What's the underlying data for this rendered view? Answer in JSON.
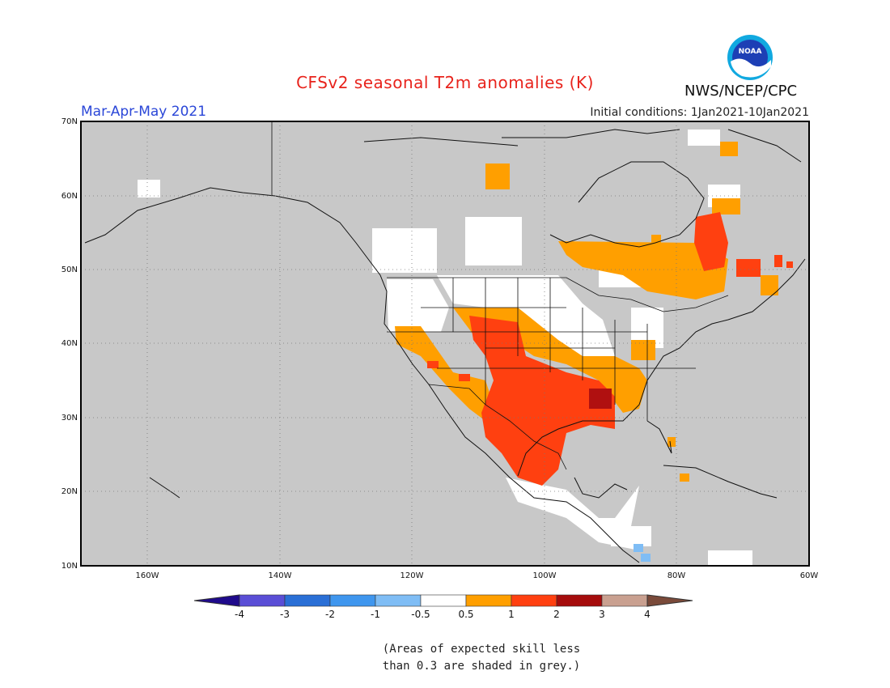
{
  "title": "CFSv2 seasonal T2m anomalies (K)",
  "season": "Mar-Apr-May 2021",
  "initial_conditions": "Initial conditions: 1Jan2021-10Jan2021",
  "agency": "NWS/NCEP/CPC",
  "logo_text": "NOAA",
  "note_line1": "(Areas of expected skill less",
  "note_line2": "than 0.3 are shaded in grey.)",
  "map": {
    "lon_range": [
      -170,
      -60
    ],
    "lat_range": [
      10,
      70
    ],
    "lat_labels": [
      "70N",
      "60N",
      "50N",
      "40N",
      "30N",
      "20N",
      "10N"
    ],
    "lon_labels": [
      "160W",
      "140W",
      "120W",
      "100W",
      "80W",
      "60W"
    ],
    "background_color": "#c8c8c8"
  },
  "colorbar": {
    "labels": [
      "-4",
      "-3",
      "-2",
      "-1",
      "-0.5",
      "0.5",
      "1",
      "2",
      "3",
      "4"
    ],
    "colors": [
      "#1f0a8c",
      "#5a4ed6",
      "#2a6fd6",
      "#3f96ee",
      "#7fbdf5",
      "#ffffff",
      "#ff9f00",
      "#ff4010",
      "#a50c0c",
      "#c9a090",
      "#7a4a3a"
    ]
  }
}
